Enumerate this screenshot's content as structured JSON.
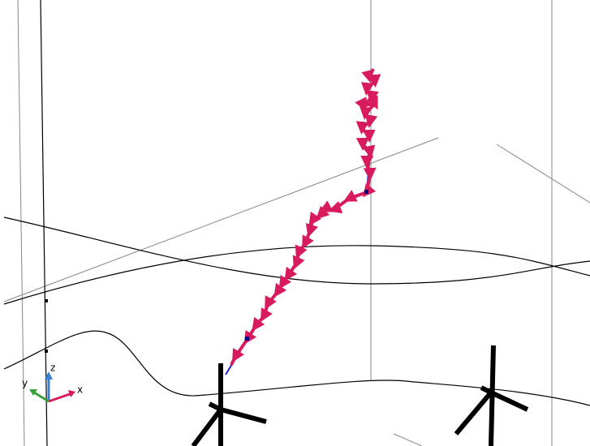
{
  "axes_gizmo": {
    "x": "x",
    "y": "y",
    "z": "z"
  }
}
